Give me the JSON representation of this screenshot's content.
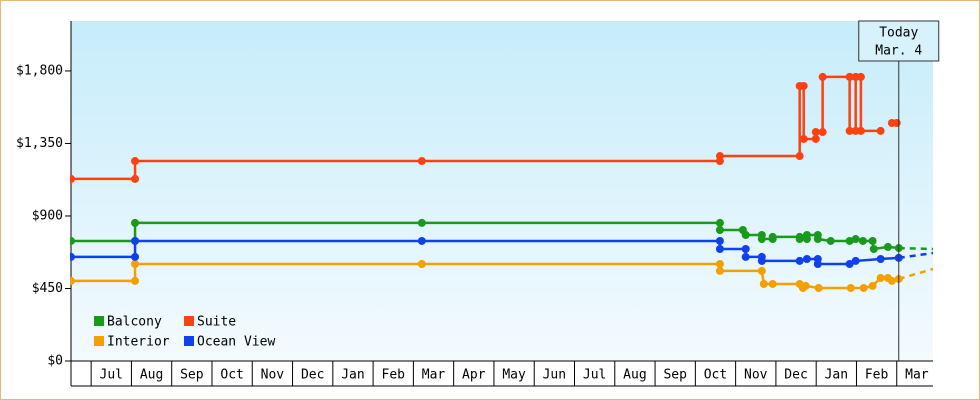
{
  "chart_data": {
    "type": "line",
    "xlim": [
      -0.5,
      20.9
    ],
    "ylim": [
      0,
      2110
    ],
    "yticks": [
      {
        "value": 0,
        "label": "$0"
      },
      {
        "value": 450,
        "label": "$450"
      },
      {
        "value": 900,
        "label": "$900"
      },
      {
        "value": 1350,
        "label": "$1,350"
      },
      {
        "value": 1800,
        "label": "$1,800"
      }
    ],
    "xticks": [
      {
        "value": 0.5,
        "label": "Jul"
      },
      {
        "value": 1.5,
        "label": "Aug"
      },
      {
        "value": 2.5,
        "label": "Sep"
      },
      {
        "value": 3.5,
        "label": "Oct"
      },
      {
        "value": 4.5,
        "label": "Nov"
      },
      {
        "value": 5.5,
        "label": "Dec"
      },
      {
        "value": 6.5,
        "label": "Jan"
      },
      {
        "value": 7.5,
        "label": "Feb"
      },
      {
        "value": 8.5,
        "label": "Mar"
      },
      {
        "value": 9.5,
        "label": "Apr"
      },
      {
        "value": 10.5,
        "label": "May"
      },
      {
        "value": 11.5,
        "label": "Jun"
      },
      {
        "value": 12.5,
        "label": "Jul"
      },
      {
        "value": 13.5,
        "label": "Aug"
      },
      {
        "value": 14.5,
        "label": "Sep"
      },
      {
        "value": 15.5,
        "label": "Oct"
      },
      {
        "value": 16.5,
        "label": "Nov"
      },
      {
        "value": 17.5,
        "label": "Dec"
      },
      {
        "value": 18.5,
        "label": "Jan"
      },
      {
        "value": 19.5,
        "label": "Feb"
      },
      {
        "value": 20.5,
        "label": "Mar"
      }
    ],
    "annotation": {
      "x": 20.05,
      "lines": [
        "Today",
        "Mar. 4"
      ]
    },
    "projection_x": [
      20.05,
      20.9
    ],
    "series": [
      {
        "name": "Balcony",
        "color": "#1a9a1a",
        "x": [
          -0.5,
          1.09,
          1.09,
          8.21,
          15.61,
          15.61,
          16.18,
          16.25,
          16.65,
          16.65,
          16.92,
          16.92,
          17.59,
          17.59,
          17.77,
          17.77,
          18.04,
          18.04,
          18.36,
          18.83,
          18.98,
          19.16,
          19.4,
          19.43,
          19.78,
          20.05
        ],
        "values": [
          745,
          745,
          857,
          857,
          857,
          813,
          813,
          782,
          782,
          757,
          757,
          770,
          770,
          757,
          757,
          782,
          782,
          757,
          745,
          745,
          757,
          745,
          745,
          695,
          708,
          701
        ],
        "projection": [
          701,
          695
        ]
      },
      {
        "name": "Suite",
        "color": "#ff4010",
        "x": [
          -0.5,
          1.09,
          1.09,
          8.21,
          15.61,
          15.61,
          17.59,
          17.59,
          17.69,
          17.69,
          17.99,
          17.99,
          18.16,
          18.16,
          18.83,
          18.83,
          18.98,
          18.98,
          19.11,
          19.11,
          19.6,
          19.74,
          19.88,
          20.0
        ],
        "values": [
          1130,
          1130,
          1241,
          1241,
          1241,
          1272,
          1272,
          1707,
          1707,
          1378,
          1378,
          1421,
          1421,
          1763,
          1763,
          1428,
          1428,
          1763,
          1763,
          1428,
          1428,
          null,
          1477,
          1477
        ]
      },
      {
        "name": "Interior",
        "color": "#f5a000",
        "x": [
          -0.5,
          1.09,
          1.09,
          8.21,
          15.61,
          15.61,
          16.65,
          16.7,
          16.92,
          17.59,
          17.67,
          17.74,
          18.06,
          18.86,
          19.18,
          19.4,
          19.6,
          19.78,
          19.88,
          20.05
        ],
        "values": [
          497,
          497,
          602,
          602,
          602,
          559,
          559,
          478,
          478,
          478,
          453,
          466,
          453,
          453,
          453,
          466,
          515,
          515,
          497,
          509
        ],
        "projection": [
          509,
          571
        ]
      },
      {
        "name": "Ocean View",
        "color": "#1040f0",
        "x": [
          -0.5,
          1.09,
          1.09,
          8.21,
          15.61,
          15.61,
          16.25,
          16.25,
          16.65,
          16.65,
          17.59,
          17.77,
          18.04,
          18.04,
          18.83,
          18.98,
          19.6,
          20.05
        ],
        "values": [
          646,
          646,
          745,
          745,
          745,
          695,
          695,
          646,
          646,
          621,
          621,
          633,
          633,
          602,
          602,
          621,
          633,
          640
        ],
        "projection": [
          640,
          670
        ]
      }
    ]
  }
}
